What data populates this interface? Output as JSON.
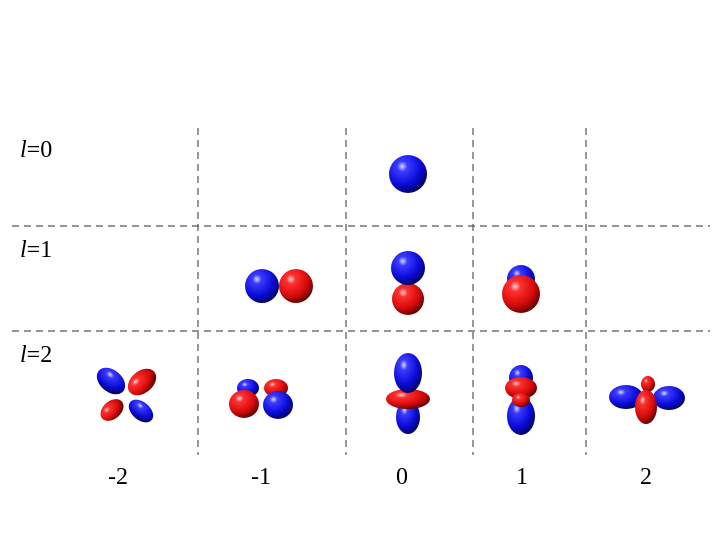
{
  "colors": {
    "positive_lobe": "#1010e0",
    "negative_lobe": "#e01010",
    "grid_line": "#555555"
  },
  "rows": [
    {
      "var": "l",
      "eq": "=0"
    },
    {
      "var": "l",
      "eq": "=1"
    },
    {
      "var": "l",
      "eq": "=2"
    }
  ],
  "columns": [
    "-2",
    "-1",
    "0",
    "1",
    "2"
  ],
  "orbitals": [
    {
      "row": 0,
      "col": 2,
      "shape": "s-sphere"
    },
    {
      "row": 1,
      "col": 1,
      "shape": "p-horizontal-lobes"
    },
    {
      "row": 1,
      "col": 2,
      "shape": "p-vertical-lobes"
    },
    {
      "row": 1,
      "col": 3,
      "shape": "p-tilted-lobes"
    },
    {
      "row": 2,
      "col": 0,
      "shape": "d-cloverleaf-diagonal"
    },
    {
      "row": 2,
      "col": 1,
      "shape": "d-cloverleaf-tilted"
    },
    {
      "row": 2,
      "col": 2,
      "shape": "d-z2-with-torus"
    },
    {
      "row": 2,
      "col": 3,
      "shape": "d-cloverleaf-vertical"
    },
    {
      "row": 2,
      "col": 4,
      "shape": "d-cloverleaf-horizontal"
    }
  ]
}
